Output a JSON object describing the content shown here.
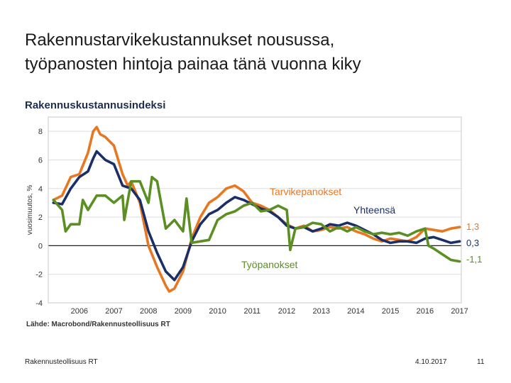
{
  "slide": {
    "title_line1": "Rakennustarvikekustannukset nousussa,",
    "title_line2": "työpanosten hintoja painaa tänä vuonna kiky",
    "footer_left": "Rakennusteollisuus RT",
    "footer_date": "4.10.2017",
    "page_number": "11"
  },
  "chart_data": {
    "type": "line",
    "title": "Rakennuskustannusindeksi",
    "ylabel": "vuosimuutos, %",
    "xlabel": "",
    "source": "Lähde: Macrobond/Rakennusteollisuus RT",
    "ylim": [
      -4,
      9
    ],
    "xlim": [
      2005.6,
      2017.55
    ],
    "yticks": [
      -4,
      -2,
      0,
      2,
      4,
      6,
      8
    ],
    "xticks": [
      "2006",
      "2007",
      "2008",
      "2009",
      "2010",
      "2011",
      "2012",
      "2013",
      "2014",
      "2015",
      "2016",
      "2017"
    ],
    "grid": "horizontal",
    "end_labels": [
      "1,3",
      "0,3",
      "-1,1"
    ],
    "series": [
      {
        "name": "Tarvikepanokset",
        "color": "#e87722",
        "x": [
          2005.75,
          2006.0,
          2006.25,
          2006.5,
          2006.75,
          2006.9,
          2007.0,
          2007.1,
          2007.25,
          2007.5,
          2007.75,
          2007.9,
          2008.0,
          2008.25,
          2008.5,
          2008.75,
          2009.0,
          2009.1,
          2009.25,
          2009.5,
          2009.75,
          2010.0,
          2010.25,
          2010.5,
          2010.75,
          2011.0,
          2011.25,
          2011.5,
          2011.75,
          2012.0,
          2012.25,
          2012.5,
          2012.75,
          2013.0,
          2013.25,
          2013.5,
          2013.75,
          2014.0,
          2014.25,
          2014.5,
          2014.75,
          2015.0,
          2015.25,
          2015.5,
          2015.75,
          2016.0,
          2016.25,
          2016.5,
          2016.75,
          2017.0,
          2017.25,
          2017.5
        ],
        "y": [
          3.2,
          3.5,
          4.8,
          5.0,
          6.5,
          8.0,
          8.3,
          7.8,
          7.6,
          7.0,
          5.0,
          4.2,
          4.5,
          3.0,
          0.0,
          -1.5,
          -2.8,
          -3.2,
          -3.0,
          -1.8,
          0.5,
          2.0,
          3.0,
          3.4,
          4.0,
          4.2,
          3.8,
          3.0,
          2.8,
          2.5,
          2.0,
          1.5,
          1.2,
          1.4,
          1.0,
          1.1,
          1.3,
          1.2,
          1.3,
          1.0,
          0.8,
          0.5,
          0.3,
          0.5,
          0.4,
          0.3,
          0.6,
          1.2,
          1.1,
          1.0,
          1.2,
          1.3
        ]
      },
      {
        "name": "Yhteensä",
        "color": "#1b2f66",
        "x": [
          2005.75,
          2006.0,
          2006.25,
          2006.5,
          2006.75,
          2006.9,
          2007.0,
          2007.25,
          2007.5,
          2007.75,
          2008.0,
          2008.25,
          2008.5,
          2008.75,
          2009.0,
          2009.25,
          2009.5,
          2009.75,
          2010.0,
          2010.25,
          2010.5,
          2010.75,
          2011.0,
          2011.25,
          2011.5,
          2011.75,
          2012.0,
          2012.25,
          2012.5,
          2012.75,
          2013.0,
          2013.25,
          2013.5,
          2013.75,
          2014.0,
          2014.25,
          2014.5,
          2014.75,
          2015.0,
          2015.25,
          2015.5,
          2015.75,
          2016.0,
          2016.25,
          2016.5,
          2016.75,
          2017.0,
          2017.25,
          2017.5
        ],
        "y": [
          3.0,
          2.9,
          4.0,
          4.8,
          5.2,
          6.1,
          6.6,
          6.0,
          5.7,
          4.2,
          4.0,
          3.2,
          1.0,
          -0.5,
          -1.8,
          -2.4,
          -1.5,
          0.3,
          1.5,
          2.2,
          2.5,
          3.0,
          3.4,
          3.2,
          2.9,
          2.6,
          2.4,
          2.0,
          1.4,
          1.2,
          1.3,
          1.0,
          1.2,
          1.5,
          1.4,
          1.6,
          1.4,
          1.1,
          0.8,
          0.4,
          0.2,
          0.3,
          0.3,
          0.2,
          0.5,
          0.6,
          0.4,
          0.2,
          0.3
        ]
      },
      {
        "name": "Työpanokset",
        "color": "#5b8f22",
        "x": [
          2005.75,
          2006.0,
          2006.1,
          2006.25,
          2006.5,
          2006.6,
          2006.75,
          2007.0,
          2007.25,
          2007.5,
          2007.75,
          2007.8,
          2008.0,
          2008.25,
          2008.5,
          2008.6,
          2008.75,
          2009.0,
          2009.25,
          2009.5,
          2009.6,
          2009.75,
          2010.0,
          2010.25,
          2010.5,
          2010.75,
          2011.0,
          2011.25,
          2011.5,
          2011.75,
          2012.0,
          2012.25,
          2012.5,
          2012.6,
          2012.75,
          2013.0,
          2013.25,
          2013.5,
          2013.75,
          2014.0,
          2014.25,
          2014.5,
          2014.75,
          2015.0,
          2015.25,
          2015.5,
          2015.75,
          2016.0,
          2016.25,
          2016.5,
          2016.6,
          2016.75,
          2017.0,
          2017.25,
          2017.5
        ],
        "y": [
          3.2,
          2.5,
          1.0,
          1.5,
          1.5,
          3.2,
          2.5,
          3.5,
          3.5,
          3.0,
          3.5,
          1.8,
          4.5,
          4.5,
          3.0,
          4.8,
          4.5,
          1.2,
          1.8,
          1.0,
          3.3,
          0.2,
          0.3,
          0.4,
          1.8,
          2.2,
          2.4,
          2.8,
          3.0,
          2.4,
          2.5,
          2.8,
          2.5,
          -0.3,
          1.2,
          1.3,
          1.6,
          1.5,
          1.0,
          1.3,
          1.0,
          1.3,
          1.0,
          0.8,
          0.9,
          0.8,
          0.9,
          0.7,
          1.0,
          1.2,
          0.0,
          -0.2,
          -0.6,
          -1.0,
          -1.1
        ]
      }
    ]
  }
}
